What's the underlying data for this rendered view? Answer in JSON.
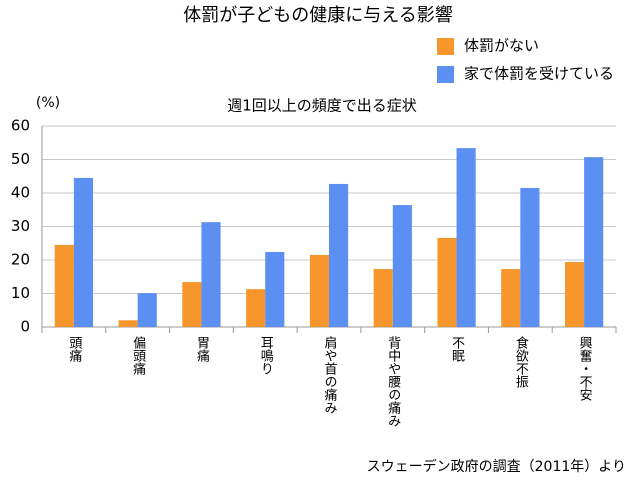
{
  "chart_data": {
    "type": "bar",
    "title": "体罰が子どもの健康に与える影響",
    "subtitle": "週1回以上の頻度で出る症状",
    "y_label": "(%)",
    "source": "スウェーデン政府の調査（2011年）より",
    "categories": [
      "頭痛",
      "偏頭痛",
      "胃痛",
      "耳鳴り",
      "肩や首の痛み",
      "背中や腰の痛み",
      "不眠",
      "食欲不振",
      "興奮・不安"
    ],
    "series": [
      {
        "name": "体罰がない",
        "color": "#f7962d",
        "values": [
          24.5,
          2,
          13.4,
          11.3,
          21.5,
          17.3,
          26.6,
          17.3,
          19.4
        ]
      },
      {
        "name": "家で体罰を受けている",
        "color": "#5b8ff2",
        "values": [
          44.5,
          10.1,
          31.3,
          22.4,
          42.7,
          36.4,
          53.4,
          41.5,
          50.7
        ]
      }
    ],
    "ylim": [
      0,
      60
    ],
    "yticks": [
      0,
      10,
      20,
      30,
      40,
      50,
      60
    ],
    "grid": true,
    "legend": "top-right"
  }
}
